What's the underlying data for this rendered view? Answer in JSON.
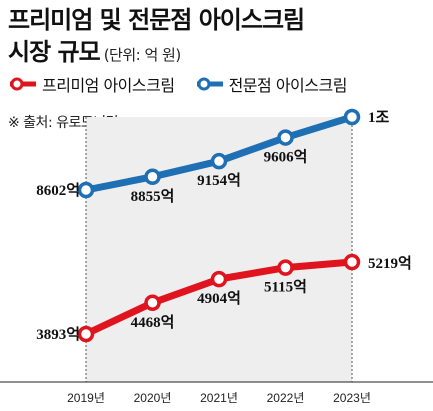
{
  "header": {
    "title_line1": "프리미엄 및 전문점 아이스크림",
    "title_line2": "시장 규모",
    "unit": "(단위: 억 원)",
    "source": "※ 출처: 유로모니터"
  },
  "colors": {
    "premium": "#e0141e",
    "specialty": "#1f6fb4",
    "band": "#eeeeee"
  },
  "chart_data": {
    "type": "line",
    "x": [
      "2019년",
      "2020년",
      "2021년",
      "2022년",
      "2023년"
    ],
    "series": [
      {
        "name": "프리미엄 아이스크림",
        "values": [
          3893,
          4468,
          4904,
          5115,
          5219
        ],
        "labels": [
          "3893억",
          "4468억",
          "4904억",
          "5115억",
          "5219억"
        ]
      },
      {
        "name": "전문점 아이스크림",
        "values": [
          8602,
          8855,
          9154,
          9606,
          10000
        ],
        "labels": [
          "8602억",
          "8855억",
          "9154억",
          "9606억",
          "1조"
        ]
      }
    ],
    "legend": "top-left",
    "grid": false
  }
}
